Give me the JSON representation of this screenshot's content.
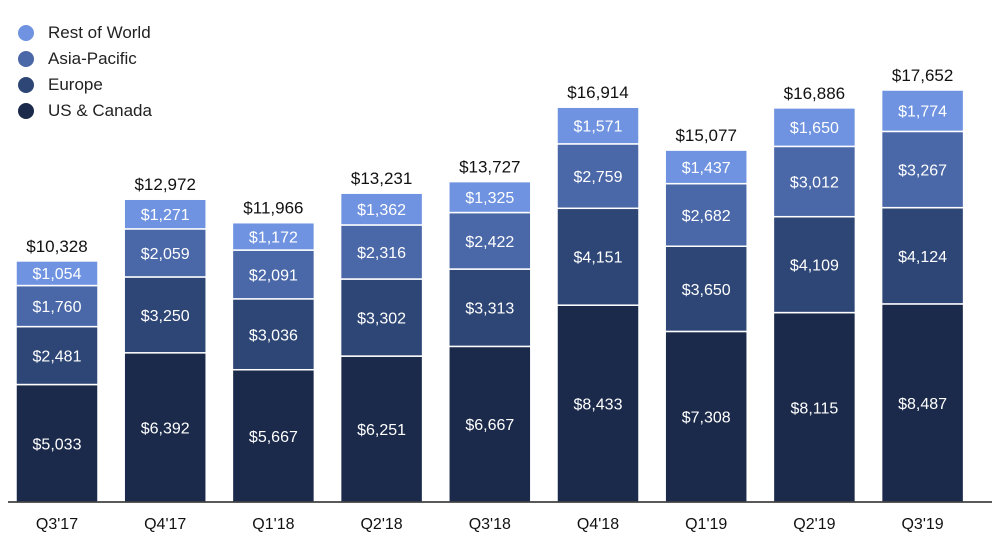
{
  "chart_data": {
    "type": "bar",
    "stacked": true,
    "categories": [
      "Q3'17",
      "Q4'17",
      "Q1'18",
      "Q2'18",
      "Q3'18",
      "Q4'18",
      "Q1'19",
      "Q2'19",
      "Q3'19"
    ],
    "series": [
      {
        "name": "US & Canada",
        "color": "#1b2a4a",
        "values": [
          5033,
          6392,
          5667,
          6251,
          6667,
          8433,
          7308,
          8115,
          8487
        ],
        "labels": [
          "$5,033",
          "$6,392",
          "$5,667",
          "$6,251",
          "$6,667",
          "$8,433",
          "$7,308",
          "$8,115",
          "$8,487"
        ]
      },
      {
        "name": "Europe",
        "color": "#2e4675",
        "values": [
          2481,
          3250,
          3036,
          3302,
          3313,
          4151,
          3650,
          4109,
          4124
        ],
        "labels": [
          "$2,481",
          "$3,250",
          "$3,036",
          "$3,302",
          "$3,313",
          "$4,151",
          "$3,650",
          "$4,109",
          "$4,124"
        ]
      },
      {
        "name": "Asia-Pacific",
        "color": "#4a67a8",
        "values": [
          1760,
          2059,
          2091,
          2316,
          2422,
          2759,
          2682,
          3012,
          3267
        ],
        "labels": [
          "$1,760",
          "$2,059",
          "$2,091",
          "$2,316",
          "$2,422",
          "$2,759",
          "$2,682",
          "$3,012",
          "$3,267"
        ]
      },
      {
        "name": "Rest of World",
        "color": "#6f93e0",
        "values": [
          1054,
          1271,
          1172,
          1362,
          1325,
          1571,
          1437,
          1650,
          1774
        ],
        "labels": [
          "$1,054",
          "$1,271",
          "$1,172",
          "$1,362",
          "$1,325",
          "$1,571",
          "$1,437",
          "$1,650",
          "$1,774"
        ]
      }
    ],
    "totals": [
      10328,
      12972,
      11966,
      13231,
      13727,
      16914,
      15077,
      16886,
      17652
    ],
    "total_labels": [
      "$10,328",
      "$12,972",
      "$11,966",
      "$13,231",
      "$13,727",
      "$16,914",
      "$15,077",
      "$16,886",
      "$17,652"
    ],
    "legend_order": [
      "Rest of World",
      "Asia-Pacific",
      "Europe",
      "US & Canada"
    ],
    "legend_position": "top-left",
    "ylim": [
      0,
      17652
    ],
    "grid": false,
    "title": "",
    "xlabel": "",
    "ylabel": ""
  }
}
